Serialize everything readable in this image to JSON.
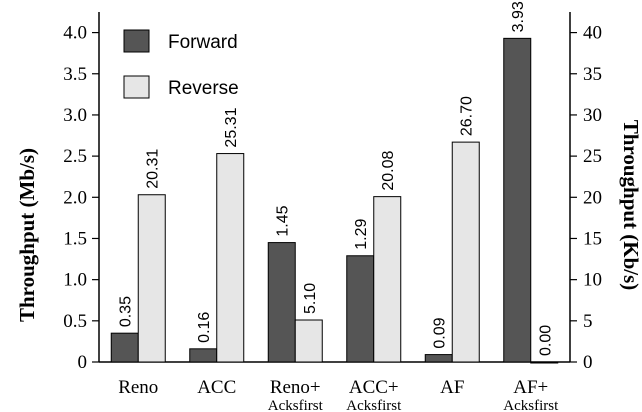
{
  "chart_data": {
    "type": "bar",
    "categories": [
      {
        "line1": "Reno",
        "line2": ""
      },
      {
        "line1": "ACC",
        "line2": ""
      },
      {
        "line1": "Reno+",
        "line2": "Acksfirst"
      },
      {
        "line1": "ACC+",
        "line2": "Acksfirst"
      },
      {
        "line1": "AF",
        "line2": ""
      },
      {
        "line1": "AF+",
        "line2": "Acksfirst"
      }
    ],
    "series": [
      {
        "name": "Forward",
        "axis": "left",
        "color": "#555555",
        "values": [
          0.35,
          0.16,
          1.45,
          1.29,
          0.09,
          3.93
        ],
        "labels": [
          "0.35",
          "0.16",
          "1.45",
          "1.29",
          "0.09",
          "3.93"
        ]
      },
      {
        "name": "Reverse",
        "axis": "right",
        "color": "#e6e6e6",
        "values": [
          20.31,
          25.31,
          5.1,
          20.08,
          26.7,
          0.0
        ],
        "labels": [
          "20.31",
          "25.31",
          "5.10",
          "20.08",
          "26.70",
          "0.00"
        ]
      }
    ],
    "ylabel": "Throughput (Mb/s)",
    "y2label": "Throughput (Kb/s)",
    "ylim": [
      0,
      4.25
    ],
    "y2lim": [
      0,
      42.5
    ],
    "yticks": [
      "0",
      "0.5",
      "1.0",
      "1.5",
      "2.0",
      "2.5",
      "3.0",
      "3.5",
      "4.0"
    ],
    "y2ticks": [
      "0",
      "5",
      "10",
      "15",
      "20",
      "25",
      "30",
      "35",
      "40"
    ],
    "legend": "top-left",
    "grid": false
  }
}
